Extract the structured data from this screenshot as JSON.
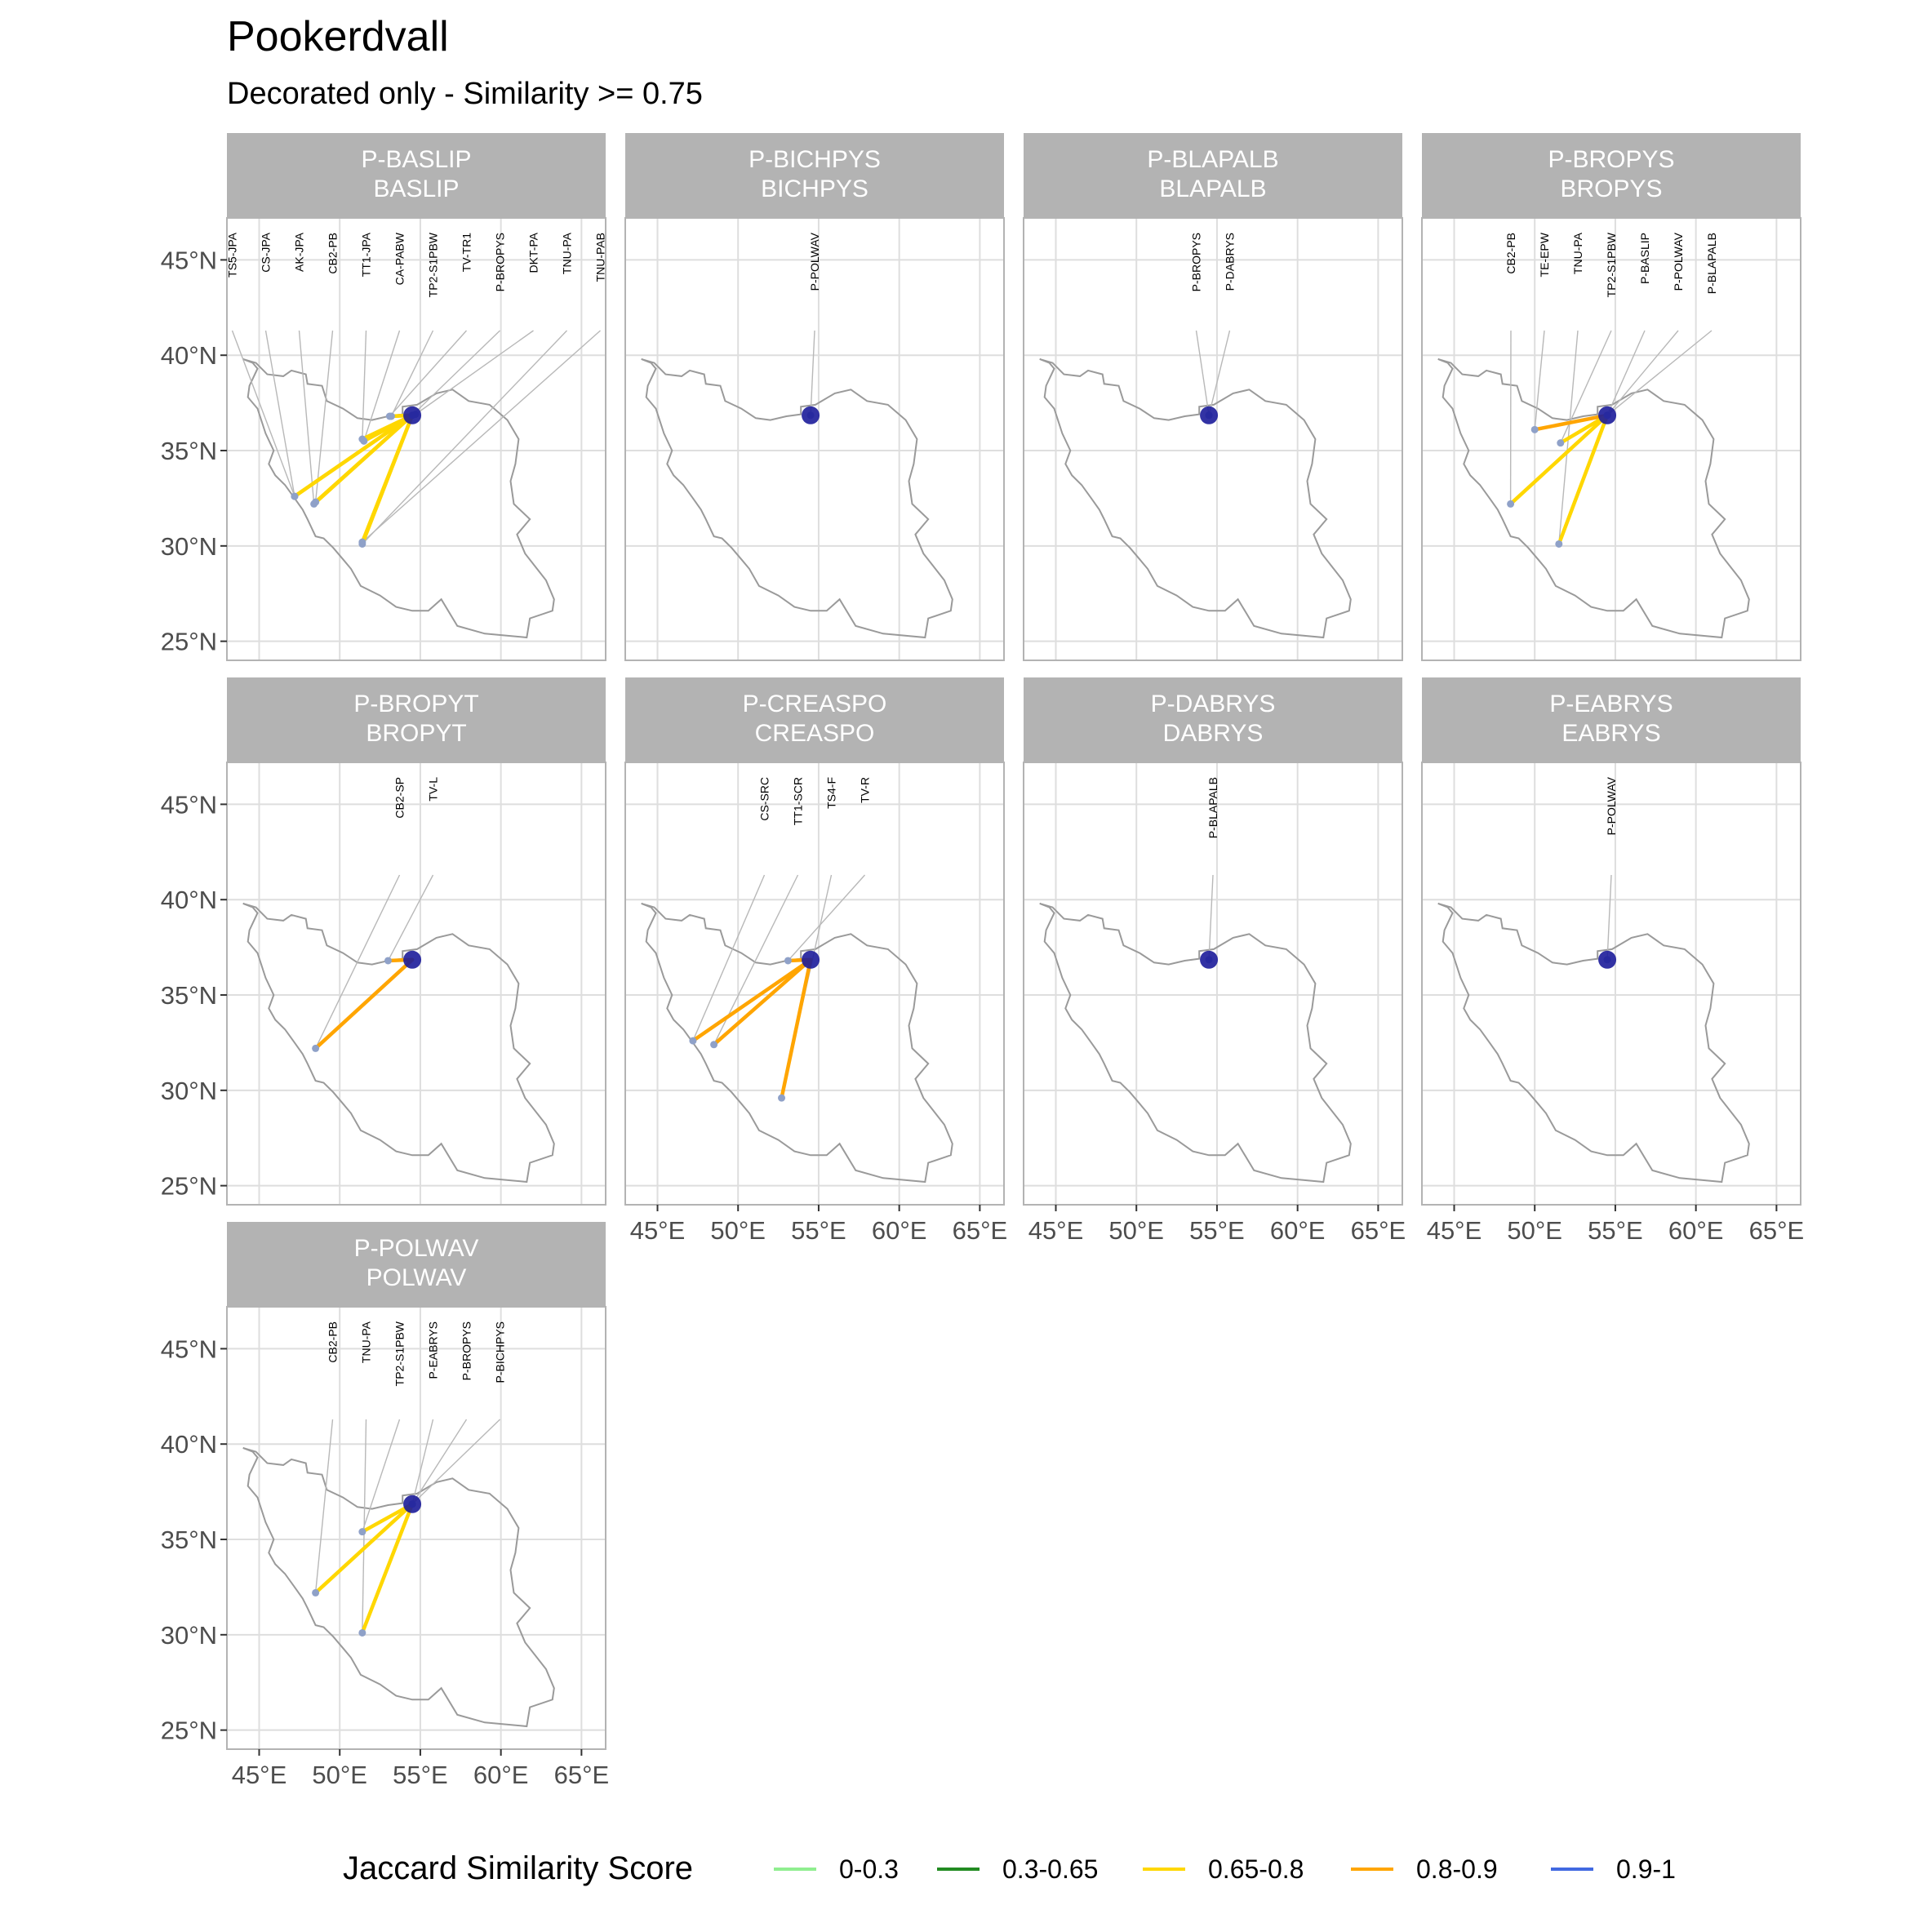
{
  "title": "Pookerdvall",
  "subtitle": "Decorated only - Similarity >= 0.75",
  "map_data": {
    "center": {
      "lon": 54.5,
      "lat": 36.85
    },
    "lon_ticks": [
      {
        "value": 45,
        "label": "45°E"
      },
      {
        "value": 50,
        "label": "50°E"
      },
      {
        "value": 55,
        "label": "55°E"
      },
      {
        "value": 60,
        "label": "60°E"
      },
      {
        "value": 65,
        "label": "65°E"
      }
    ],
    "lat_ticks": [
      {
        "value": 45,
        "label": "45°N"
      },
      {
        "value": 40,
        "label": "40°N"
      },
      {
        "value": 35,
        "label": "35°N"
      },
      {
        "value": 30,
        "label": "30°N"
      },
      {
        "value": 25,
        "label": "25°N"
      }
    ],
    "xlim": [
      43,
      66.5
    ],
    "ylim": [
      24,
      47.2
    ],
    "colors": {
      "0-0.3": "#90ee90",
      "0.3-0.65": "#228b22",
      "0.65-0.8": "#ffd700",
      "0.8-0.9": "#ffa500",
      "0.9-1": "#4169e1",
      "center_point": "#1c1c9a",
      "site_point": "#8fa1c8",
      "border": "#9a9a9a",
      "strip": "#b3b3b3"
    },
    "border": [
      [
        44.0,
        39.8
      ],
      [
        44.6,
        39.6
      ],
      [
        44.9,
        39.3
      ],
      [
        44.4,
        38.4
      ],
      [
        44.3,
        37.8
      ],
      [
        44.9,
        37.2
      ],
      [
        45.4,
        35.9
      ],
      [
        45.9,
        35.0
      ],
      [
        45.6,
        34.3
      ],
      [
        46.0,
        33.7
      ],
      [
        46.6,
        33.2
      ],
      [
        47.2,
        32.5
      ],
      [
        47.7,
        31.9
      ],
      [
        48.0,
        31.4
      ],
      [
        48.5,
        30.5
      ],
      [
        49.0,
        30.4
      ],
      [
        49.6,
        29.9
      ],
      [
        50.2,
        29.3
      ],
      [
        50.7,
        28.8
      ],
      [
        51.3,
        27.9
      ],
      [
        52.5,
        27.4
      ],
      [
        53.5,
        26.8
      ],
      [
        54.5,
        26.6
      ],
      [
        55.5,
        26.6
      ],
      [
        56.3,
        27.2
      ],
      [
        57.3,
        25.8
      ],
      [
        59.0,
        25.4
      ],
      [
        61.6,
        25.2
      ],
      [
        61.8,
        26.2
      ],
      [
        63.2,
        26.6
      ],
      [
        63.3,
        27.2
      ],
      [
        62.8,
        28.2
      ],
      [
        61.5,
        29.6
      ],
      [
        61.0,
        30.6
      ],
      [
        61.8,
        31.4
      ],
      [
        60.8,
        32.2
      ],
      [
        60.6,
        33.4
      ],
      [
        60.9,
        34.3
      ],
      [
        61.1,
        35.6
      ],
      [
        60.4,
        36.6
      ],
      [
        59.3,
        37.4
      ],
      [
        58.0,
        37.6
      ],
      [
        57.0,
        38.2
      ],
      [
        56.0,
        38.0
      ],
      [
        54.8,
        37.4
      ],
      [
        53.9,
        37.3
      ],
      [
        53.9,
        36.9
      ],
      [
        53.0,
        36.8
      ],
      [
        52.0,
        36.6
      ],
      [
        51.1,
        36.7
      ],
      [
        50.2,
        37.2
      ],
      [
        49.2,
        37.6
      ],
      [
        48.9,
        38.4
      ],
      [
        48.0,
        38.5
      ],
      [
        47.9,
        39.0
      ],
      [
        47.0,
        39.2
      ],
      [
        46.5,
        38.9
      ],
      [
        45.5,
        39.0
      ],
      [
        44.8,
        39.6
      ]
    ],
    "panels": [
      {
        "strip": [
          "P-BASLIP",
          "BASLIP"
        ],
        "sites": [
          {
            "label": "TS5-JPA",
            "lon": 47.2,
            "lat": 32.6,
            "score": "0.65-0.8"
          },
          {
            "label": "CS-JPA",
            "lon": 47.2,
            "lat": 32.6,
            "score": "0.65-0.8"
          },
          {
            "label": "AK-JPA",
            "lon": 48.4,
            "lat": 32.2,
            "score": "0.65-0.8"
          },
          {
            "label": "CB2-PB",
            "lon": 48.5,
            "lat": 32.3,
            "score": "0.65-0.8"
          },
          {
            "label": "TT1-JPA",
            "lon": 51.4,
            "lat": 35.6,
            "score": "0.65-0.8"
          },
          {
            "label": "CA-PABW",
            "lon": 51.5,
            "lat": 35.5,
            "score": "0.65-0.8"
          },
          {
            "label": "TP2-S1PBW",
            "lon": 53.2,
            "lat": 36.8,
            "score": "0.65-0.8"
          },
          {
            "label": "TV-TR1",
            "lon": 53.1,
            "lat": 36.8,
            "score": "0.65-0.8"
          },
          {
            "label": "P-BROPYS",
            "lon": 54.5,
            "lat": 36.85,
            "score": "0.65-0.8"
          },
          {
            "label": "DKT-PA",
            "lon": 54.7,
            "lat": 36.9,
            "score": "0.65-0.8"
          },
          {
            "label": "TNU-PA",
            "lon": 51.4,
            "lat": 30.1,
            "score": "0.65-0.8"
          },
          {
            "label": "TNU-PAB",
            "lon": 51.4,
            "lat": 30.2,
            "score": "0.65-0.8"
          }
        ]
      },
      {
        "strip": [
          "P-BICHPYS",
          "BICHPYS"
        ],
        "sites": [
          {
            "label": "P-POLWAV",
            "lon": 54.5,
            "lat": 36.85,
            "score": "0.65-0.8"
          }
        ]
      },
      {
        "strip": [
          "P-BLAPALB",
          "BLAPALB"
        ],
        "sites": [
          {
            "label": "P-BROPYS",
            "lon": 54.5,
            "lat": 36.85,
            "score": "0.65-0.8"
          },
          {
            "label": "P-DABRYS",
            "lon": 54.5,
            "lat": 36.85,
            "score": "0.65-0.8"
          }
        ]
      },
      {
        "strip": [
          "P-BROPYS",
          "BROPYS"
        ],
        "sites": [
          {
            "label": "CB2-PB",
            "lon": 48.5,
            "lat": 32.2,
            "score": "0.65-0.8"
          },
          {
            "label": "TE-EPW",
            "lon": 50.0,
            "lat": 36.1,
            "score": "0.8-0.9"
          },
          {
            "label": "TNU-PA",
            "lon": 51.5,
            "lat": 30.1,
            "score": "0.65-0.8"
          },
          {
            "label": "TP2-S1PBW",
            "lon": 51.6,
            "lat": 35.4,
            "score": "0.65-0.8"
          },
          {
            "label": "P-BASLIP",
            "lon": 54.5,
            "lat": 36.85,
            "score": "0.65-0.8"
          },
          {
            "label": "P-POLWAV",
            "lon": 54.5,
            "lat": 36.85,
            "score": "0.65-0.8"
          },
          {
            "label": "P-BLAPALB",
            "lon": 54.5,
            "lat": 36.85,
            "score": "0.65-0.8"
          }
        ]
      },
      {
        "strip": [
          "P-BROPYT",
          "BROPYT"
        ],
        "sites": [
          {
            "label": "CB2-SP",
            "lon": 48.5,
            "lat": 32.2,
            "score": "0.8-0.9"
          },
          {
            "label": "TV-L",
            "lon": 53.0,
            "lat": 36.8,
            "score": "0.8-0.9"
          }
        ]
      },
      {
        "strip": [
          "P-CREASPO",
          "CREASPO"
        ],
        "sites": [
          {
            "label": "CS-SRC",
            "lon": 47.2,
            "lat": 32.6,
            "score": "0.8-0.9"
          },
          {
            "label": "TT1-SCR",
            "lon": 48.5,
            "lat": 32.4,
            "score": "0.8-0.9"
          },
          {
            "label": "TS4-F",
            "lon": 52.7,
            "lat": 29.6,
            "score": "0.8-0.9"
          },
          {
            "label": "TV-R",
            "lon": 53.1,
            "lat": 36.8,
            "score": "0.8-0.9"
          }
        ]
      },
      {
        "strip": [
          "P-DABRYS",
          "DABRYS"
        ],
        "sites": [
          {
            "label": "P-BLAPALB",
            "lon": 54.5,
            "lat": 36.85,
            "score": "0.65-0.8"
          }
        ]
      },
      {
        "strip": [
          "P-EABRYS",
          "EABRYS"
        ],
        "sites": [
          {
            "label": "P-POLWAV",
            "lon": 54.5,
            "lat": 36.85,
            "score": "0.65-0.8"
          }
        ]
      },
      {
        "strip": [
          "P-POLWAV",
          "POLWAV"
        ],
        "sites": [
          {
            "label": "CB2-PB",
            "lon": 48.5,
            "lat": 32.2,
            "score": "0.65-0.8"
          },
          {
            "label": "TNU-PA",
            "lon": 51.4,
            "lat": 30.1,
            "score": "0.65-0.8"
          },
          {
            "label": "TP2-S1PBW",
            "lon": 51.4,
            "lat": 35.4,
            "score": "0.65-0.8"
          },
          {
            "label": "P-EABRYS",
            "lon": 54.5,
            "lat": 36.85,
            "score": "0.65-0.8"
          },
          {
            "label": "P-BROPYS",
            "lon": 54.5,
            "lat": 36.85,
            "score": "0.65-0.8"
          },
          {
            "label": "P-BICHPYS",
            "lon": 54.5,
            "lat": 36.85,
            "score": "0.65-0.8"
          }
        ]
      }
    ]
  },
  "legend": {
    "title": "Jaccard Similarity Score",
    "items": [
      {
        "label": "0-0.3",
        "color": "#90ee90"
      },
      {
        "label": "0.3-0.65",
        "color": "#228b22"
      },
      {
        "label": "0.65-0.8",
        "color": "#ffd700"
      },
      {
        "label": "0.8-0.9",
        "color": "#ffa500"
      },
      {
        "label": "0.9-1",
        "color": "#4169e1"
      }
    ]
  }
}
